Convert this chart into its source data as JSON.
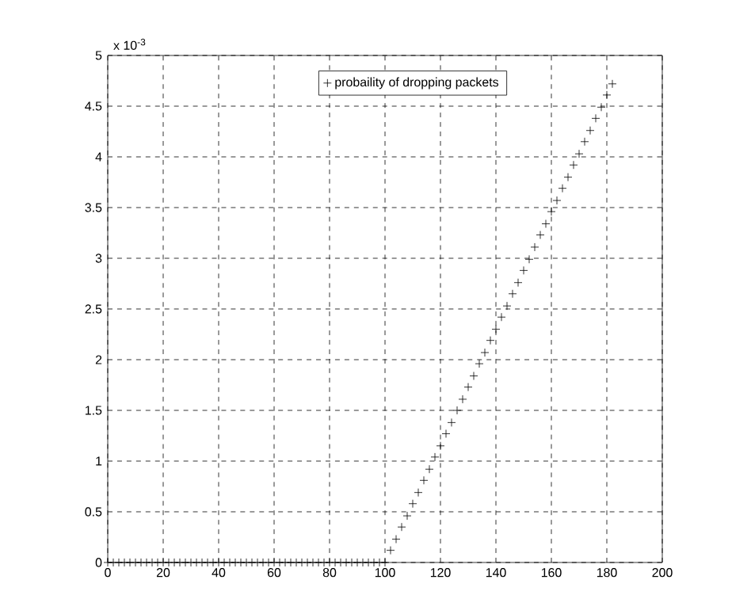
{
  "chart_data": {
    "type": "scatter",
    "marker": "cross",
    "grid": true,
    "legend": "top",
    "annotations": [
      "x 10$^{-3}$"
    ],
    "xlim": [
      0,
      200
    ],
    "xticks": [
      0,
      20,
      40,
      60,
      80,
      100,
      120,
      140,
      160,
      180,
      200
    ],
    "ylim": [
      0,
      5
    ],
    "yticks": [
      0,
      0.5,
      1,
      1.5,
      2,
      2.5,
      3,
      3.5,
      4,
      4.5,
      5
    ],
    "series": [
      {
        "name": "probaility of dropping packets",
        "color": "#000000",
        "x": [
          0,
          2,
          4,
          6,
          8,
          10,
          12,
          14,
          16,
          18,
          20,
          22,
          24,
          26,
          28,
          30,
          32,
          34,
          36,
          38,
          40,
          42,
          44,
          46,
          48,
          50,
          52,
          54,
          56,
          58,
          60,
          62,
          64,
          66,
          68,
          70,
          72,
          74,
          76,
          78,
          80,
          82,
          84,
          86,
          88,
          90,
          92,
          94,
          96,
          98,
          100,
          102,
          104,
          106,
          108,
          110,
          112,
          114,
          116,
          118,
          120,
          122,
          124,
          126,
          128,
          130,
          132,
          134,
          136,
          138,
          140,
          142,
          144,
          146,
          148,
          150,
          152,
          154,
          156,
          158,
          160,
          162,
          164,
          166,
          168,
          170,
          172,
          174,
          176,
          178,
          180,
          182
        ],
        "values": [
          0,
          0,
          0,
          0,
          0,
          0,
          0,
          0,
          0,
          0,
          0,
          0,
          0,
          0,
          0,
          0,
          0,
          0,
          0,
          0,
          0,
          0,
          0,
          0,
          0,
          0,
          0,
          0,
          0,
          0,
          0,
          0,
          0,
          0,
          0,
          0,
          0,
          0,
          0,
          0,
          0,
          0,
          0,
          0,
          0,
          0,
          0,
          0,
          0,
          0,
          0,
          0.12,
          0.23,
          0.35,
          0.46,
          0.58,
          0.69,
          0.81,
          0.92,
          1.04,
          1.15,
          1.27,
          1.38,
          1.5,
          1.61,
          1.73,
          1.84,
          1.96,
          2.07,
          2.19,
          2.3,
          2.42,
          2.53,
          2.65,
          2.76,
          2.88,
          2.99,
          3.11,
          3.23,
          3.34,
          3.46,
          3.57,
          3.69,
          3.8,
          3.92,
          4.03,
          4.15,
          4.26,
          4.38,
          4.49,
          4.61,
          4.72
        ]
      }
    ]
  }
}
